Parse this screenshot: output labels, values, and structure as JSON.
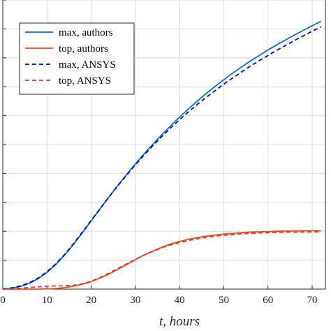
{
  "chart_data": {
    "type": "line",
    "xlabel": "t, hours",
    "xlim": [
      0,
      73
    ],
    "xticks": [
      0,
      10,
      20,
      30,
      40,
      50,
      60,
      70
    ],
    "ylim": [
      0,
      1
    ],
    "grid": true,
    "legend_position": "top-left",
    "series": [
      {
        "name": "max, authors",
        "color": "#0072BD",
        "style": "solid",
        "x": [
          0,
          2,
          4,
          6,
          8,
          10,
          12,
          14,
          16,
          18,
          20,
          22,
          24,
          26,
          28,
          30,
          32,
          34,
          36,
          38,
          40,
          42,
          44,
          46,
          48,
          50,
          52,
          54,
          56,
          58,
          60,
          62,
          64,
          66,
          68,
          70,
          72
        ],
        "y": [
          0.0,
          0.003,
          0.009,
          0.02,
          0.036,
          0.058,
          0.085,
          0.118,
          0.155,
          0.195,
          0.236,
          0.277,
          0.318,
          0.358,
          0.396,
          0.433,
          0.468,
          0.502,
          0.534,
          0.565,
          0.595,
          0.623,
          0.65,
          0.676,
          0.701,
          0.724,
          0.747,
          0.768,
          0.789,
          0.808,
          0.827,
          0.845,
          0.862,
          0.879,
          0.895,
          0.911,
          0.926
        ]
      },
      {
        "name": "top, authors",
        "color": "#D95319",
        "style": "solid",
        "x": [
          0,
          4,
          8,
          10,
          12,
          14,
          16,
          18,
          20,
          22,
          24,
          26,
          28,
          30,
          32,
          34,
          36,
          38,
          40,
          42,
          44,
          46,
          48,
          50,
          52,
          54,
          56,
          58,
          60,
          62,
          64,
          66,
          68,
          70,
          72
        ],
        "y": [
          0.0,
          0.0,
          0.0,
          0.001,
          0.002,
          0.005,
          0.01,
          0.017,
          0.026,
          0.038,
          0.052,
          0.068,
          0.085,
          0.102,
          0.118,
          0.132,
          0.145,
          0.156,
          0.165,
          0.172,
          0.178,
          0.183,
          0.187,
          0.19,
          0.193,
          0.195,
          0.197,
          0.198,
          0.199,
          0.2,
          0.201,
          0.201,
          0.202,
          0.202,
          0.202
        ]
      },
      {
        "name": "max, ANSYS",
        "color": "#0000C0",
        "style": "dashed",
        "x": [
          0,
          2,
          4,
          6,
          8,
          10,
          12,
          14,
          16,
          18,
          20,
          22,
          24,
          26,
          28,
          30,
          32,
          34,
          36,
          38,
          40,
          42,
          44,
          46,
          48,
          50,
          52,
          54,
          56,
          58,
          60,
          62,
          64,
          66,
          68,
          70,
          72
        ],
        "y": [
          0.0,
          0.004,
          0.011,
          0.022,
          0.038,
          0.06,
          0.087,
          0.12,
          0.157,
          0.197,
          0.238,
          0.278,
          0.318,
          0.357,
          0.394,
          0.43,
          0.464,
          0.497,
          0.528,
          0.558,
          0.586,
          0.613,
          0.639,
          0.663,
          0.686,
          0.709,
          0.73,
          0.751,
          0.771,
          0.79,
          0.808,
          0.826,
          0.843,
          0.86,
          0.876,
          0.892,
          0.907
        ]
      },
      {
        "name": "top, ANSYS",
        "color": "#E83030",
        "style": "dashed",
        "x": [
          0,
          4,
          8,
          10,
          12,
          14,
          16,
          18,
          20,
          22,
          24,
          26,
          28,
          30,
          32,
          34,
          36,
          38,
          40,
          42,
          44,
          46,
          48,
          50,
          52,
          54,
          56,
          58,
          60,
          62,
          64,
          66,
          68,
          70,
          72
        ],
        "y": [
          0.0,
          0.003,
          0.008,
          0.01,
          0.011,
          0.011,
          0.013,
          0.018,
          0.027,
          0.04,
          0.055,
          0.071,
          0.087,
          0.103,
          0.118,
          0.131,
          0.143,
          0.153,
          0.161,
          0.168,
          0.174,
          0.179,
          0.183,
          0.186,
          0.189,
          0.191,
          0.193,
          0.194,
          0.195,
          0.196,
          0.197,
          0.197,
          0.198,
          0.198,
          0.198
        ]
      }
    ]
  }
}
